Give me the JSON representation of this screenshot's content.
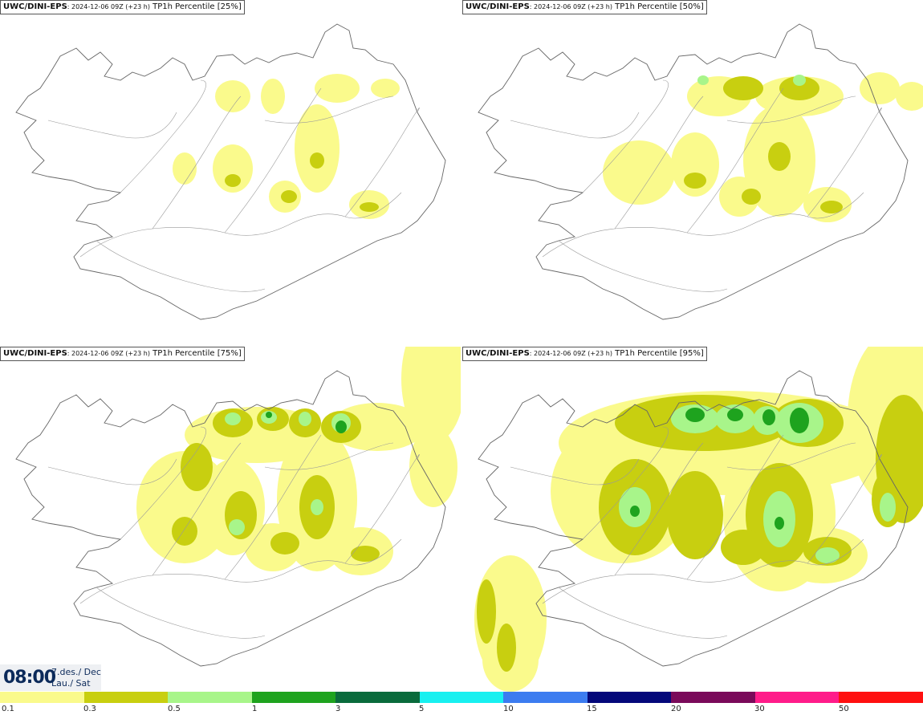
{
  "panels": [
    {
      "model": "UWC/DINI-EPS",
      "run": ": 2024-12-06 09Z (+23 h)",
      "product": " TP1h Percentile [25%]",
      "percentile": 25
    },
    {
      "model": "UWC/DINI-EPS",
      "run": ": 2024-12-06 09Z (+23 h)",
      "product": " TP1h Percentile [50%]",
      "percentile": 50
    },
    {
      "model": "UWC/DINI-EPS",
      "run": ": 2024-12-06 09Z (+23 h)",
      "product": " TP1h Percentile [75%]",
      "percentile": 75
    },
    {
      "model": "UWC/DINI-EPS",
      "run": ": 2024-12-06 09Z (+23 h)",
      "product": " TP1h Percentile [95%]",
      "percentile": 95
    }
  ],
  "valid_time": {
    "time": "08:00",
    "date_line": "7.des./ Dec",
    "day_line": "Lau./ Sat"
  },
  "legend": {
    "labels": [
      "0.1",
      "0.3",
      "0.5",
      "1",
      "3",
      "5",
      "10",
      "15",
      "20",
      "30",
      "50"
    ],
    "colors": [
      "#fafa8c",
      "#c8cf10",
      "#a8f58a",
      "#1ea31e",
      "#0a6b3c",
      "#18f0f0",
      "#3c7cf0",
      "#04087a",
      "#7a0a5a",
      "#ff1c8a",
      "#ff1010"
    ]
  }
}
